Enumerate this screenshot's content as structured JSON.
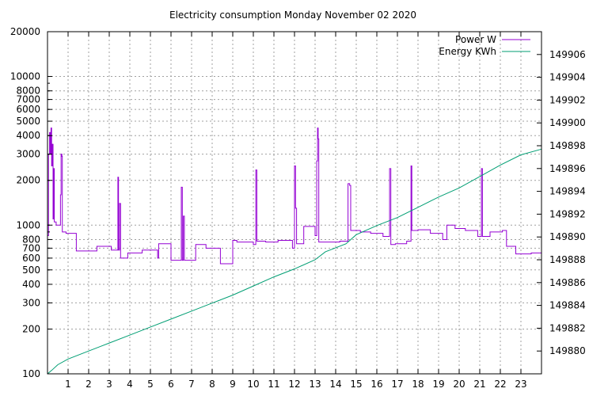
{
  "chart_data": {
    "type": "line",
    "title": "Electricity consumption Monday November 02 2020",
    "xlabel": "",
    "ylabel": "",
    "y2label": "",
    "x_range": [
      0,
      24
    ],
    "x_ticks": [
      1,
      2,
      3,
      4,
      5,
      6,
      7,
      8,
      9,
      10,
      11,
      12,
      13,
      14,
      15,
      16,
      17,
      18,
      19,
      20,
      21,
      22,
      23
    ],
    "y_scale": "log",
    "y_range": [
      100,
      20000
    ],
    "y_ticks": [
      100,
      200,
      300,
      400,
      500,
      600,
      700,
      800,
      1000,
      2000,
      3000,
      4000,
      5000,
      6000,
      7000,
      8000,
      10000,
      20000
    ],
    "y2_range": [
      149878.0,
      149908.0
    ],
    "y2_ticks": [
      149880,
      149882,
      149884,
      149886,
      149888,
      149890,
      149892,
      149894,
      149896,
      149898,
      149900,
      149902,
      149904,
      149906
    ],
    "grid": true,
    "legend": "top-right",
    "series": [
      {
        "name": "Power W",
        "axis": "y1",
        "color": "#9400d3",
        "step": true,
        "points": [
          [
            0.0,
            850
          ],
          [
            0.05,
            3000
          ],
          [
            0.1,
            4200
          ],
          [
            0.13,
            3000
          ],
          [
            0.17,
            4500
          ],
          [
            0.2,
            2500
          ],
          [
            0.23,
            3500
          ],
          [
            0.27,
            1100
          ],
          [
            0.3,
            2400
          ],
          [
            0.33,
            1050
          ],
          [
            0.42,
            1000
          ],
          [
            0.6,
            1000
          ],
          [
            0.63,
            1600
          ],
          [
            0.66,
            3000
          ],
          [
            0.7,
            2900
          ],
          [
            0.72,
            900
          ],
          [
            0.9,
            880
          ],
          [
            1.0,
            880
          ],
          [
            1.4,
            670
          ],
          [
            2.4,
            720
          ],
          [
            3.1,
            680
          ],
          [
            3.42,
            2100
          ],
          [
            3.45,
            680
          ],
          [
            3.5,
            1400
          ],
          [
            3.55,
            600
          ],
          [
            3.9,
            650
          ],
          [
            4.6,
            680
          ],
          [
            5.35,
            600
          ],
          [
            5.4,
            750
          ],
          [
            6.0,
            580
          ],
          [
            6.5,
            1800
          ],
          [
            6.55,
            580
          ],
          [
            6.6,
            1150
          ],
          [
            6.65,
            580
          ],
          [
            7.2,
            740
          ],
          [
            7.7,
            700
          ],
          [
            8.4,
            550
          ],
          [
            9.0,
            790
          ],
          [
            9.2,
            770
          ],
          [
            10.0,
            740
          ],
          [
            10.12,
            2350
          ],
          [
            10.17,
            780
          ],
          [
            10.6,
            770
          ],
          [
            11.2,
            790
          ],
          [
            11.9,
            700
          ],
          [
            12.0,
            2500
          ],
          [
            12.05,
            1300
          ],
          [
            12.1,
            750
          ],
          [
            12.45,
            980
          ],
          [
            13.0,
            850
          ],
          [
            13.08,
            2700
          ],
          [
            13.12,
            4500
          ],
          [
            13.15,
            3800
          ],
          [
            13.18,
            770
          ],
          [
            14.2,
            780
          ],
          [
            14.6,
            1900
          ],
          [
            14.68,
            1850
          ],
          [
            14.73,
            920
          ],
          [
            15.2,
            900
          ],
          [
            15.7,
            880
          ],
          [
            16.3,
            840
          ],
          [
            16.62,
            2400
          ],
          [
            16.68,
            740
          ],
          [
            16.9,
            750
          ],
          [
            17.45,
            780
          ],
          [
            17.66,
            2500
          ],
          [
            17.7,
            920
          ],
          [
            18.0,
            930
          ],
          [
            18.6,
            880
          ],
          [
            19.2,
            800
          ],
          [
            19.4,
            1000
          ],
          [
            19.8,
            950
          ],
          [
            20.3,
            920
          ],
          [
            20.9,
            840
          ],
          [
            21.08,
            2400
          ],
          [
            21.13,
            840
          ],
          [
            21.5,
            900
          ],
          [
            22.1,
            920
          ],
          [
            22.3,
            720
          ],
          [
            22.75,
            640
          ],
          [
            23.5,
            650
          ],
          [
            24.0,
            650
          ]
        ]
      },
      {
        "name": "Energy KWh",
        "axis": "y2",
        "color": "#009e73",
        "step": false,
        "points": [
          [
            0.0,
            149878.0
          ],
          [
            0.2,
            149878.3
          ],
          [
            0.5,
            149878.8
          ],
          [
            1.0,
            149879.3
          ],
          [
            2.0,
            149880.0
          ],
          [
            3.0,
            149880.7
          ],
          [
            4.0,
            149881.4
          ],
          [
            5.0,
            149882.1
          ],
          [
            6.0,
            149882.8
          ],
          [
            7.0,
            149883.5
          ],
          [
            8.0,
            149884.2
          ],
          [
            9.0,
            149884.9
          ],
          [
            10.0,
            149885.7
          ],
          [
            11.0,
            149886.5
          ],
          [
            12.0,
            149887.2
          ],
          [
            13.0,
            149888.0
          ],
          [
            13.5,
            149888.7
          ],
          [
            14.5,
            149889.4
          ],
          [
            15.0,
            149890.2
          ],
          [
            16.0,
            149891.0
          ],
          [
            17.0,
            149891.7
          ],
          [
            18.0,
            149892.6
          ],
          [
            19.0,
            149893.5
          ],
          [
            20.0,
            149894.3
          ],
          [
            21.0,
            149895.3
          ],
          [
            22.0,
            149896.3
          ],
          [
            23.0,
            149897.2
          ],
          [
            24.0,
            149897.7
          ]
        ]
      }
    ]
  }
}
